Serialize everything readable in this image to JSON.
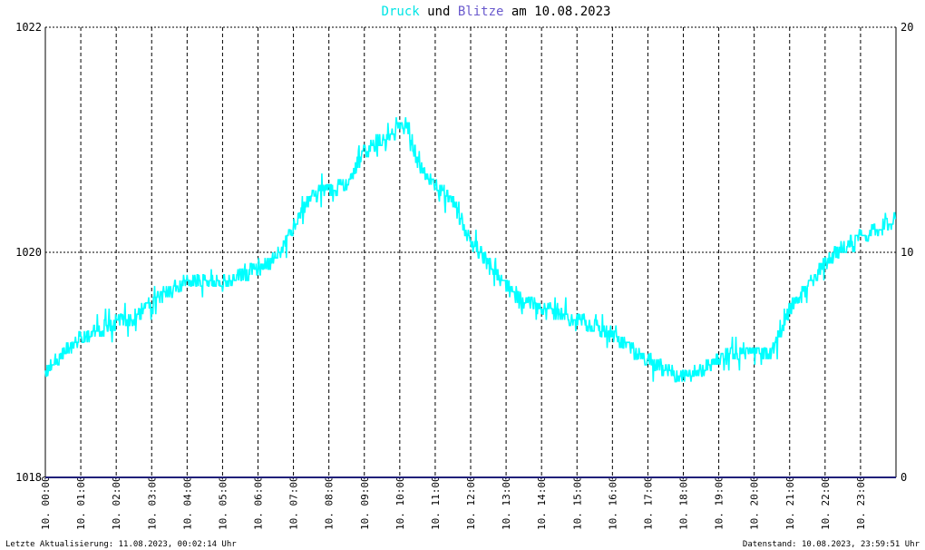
{
  "title": {
    "part1": "Druck",
    "part2": " und ",
    "part3": "Blitze",
    "part4": " am 10.08.2023",
    "color1": "#00e5e5",
    "color3": "#6a5acd",
    "color_text": "#000000"
  },
  "footer": {
    "left": "Letzte Aktualisierung: 11.08.2023, 00:02:14 Uhr",
    "right": "Datenstand: 10.08.2023, 23:59:51 Uhr"
  },
  "chart_data": {
    "type": "line",
    "title": "Druck und Blitze am 10.08.2023",
    "x_ticks": [
      "10. 00:00",
      "10. 01:00",
      "10. 02:00",
      "10. 03:00",
      "10. 04:00",
      "10. 05:00",
      "10. 06:00",
      "10. 07:00",
      "10. 08:00",
      "10. 09:00",
      "10. 10:00",
      "10. 11:00",
      "10. 12:00",
      "10. 13:00",
      "10. 14:00",
      "10. 15:00",
      "10. 16:00",
      "10. 17:00",
      "10. 18:00",
      "10. 19:00",
      "10. 20:00",
      "10. 21:00",
      "10. 22:00",
      "10. 23:00"
    ],
    "y_left": {
      "min": 1018,
      "max": 1022,
      "ticks": [
        "1018",
        "1020",
        "1022"
      ]
    },
    "y_right": {
      "min": 0,
      "max": 20,
      "ticks": [
        "0",
        "10",
        "20"
      ]
    },
    "grid": true,
    "series": [
      {
        "name": "Druck",
        "axis": "left",
        "color": "#00ffff",
        "x_hours": [
          0,
          0.5,
          1,
          1.5,
          2,
          2.5,
          3,
          3.5,
          4,
          4.5,
          5,
          5.5,
          6,
          6.5,
          7,
          7.5,
          8,
          8.5,
          9,
          9.5,
          10,
          10.25,
          10.5,
          11,
          11.5,
          12,
          12.5,
          13,
          13.5,
          14,
          14.5,
          15,
          15.5,
          16,
          16.5,
          17,
          17.5,
          18,
          18.5,
          19,
          19.5,
          20,
          20.5,
          21,
          21.5,
          22,
          22.5,
          23,
          23.5,
          24
        ],
        "values": [
          1018.95,
          1019.1,
          1019.25,
          1019.3,
          1019.38,
          1019.42,
          1019.55,
          1019.65,
          1019.75,
          1019.75,
          1019.72,
          1019.8,
          1019.85,
          1019.95,
          1020.2,
          1020.5,
          1020.55,
          1020.6,
          1020.9,
          1021.0,
          1021.1,
          1021.1,
          1020.8,
          1020.6,
          1020.45,
          1020.1,
          1019.9,
          1019.7,
          1019.55,
          1019.5,
          1019.45,
          1019.4,
          1019.35,
          1019.25,
          1019.15,
          1019.05,
          1018.95,
          1018.9,
          1018.95,
          1019.05,
          1019.1,
          1019.08,
          1019.1,
          1019.5,
          1019.7,
          1019.9,
          1020.05,
          1020.15,
          1020.2,
          1020.3
        ]
      },
      {
        "name": "Blitze",
        "axis": "right",
        "color": "#20207a",
        "x_hours": [
          0,
          24
        ],
        "values": [
          0,
          0
        ]
      }
    ]
  }
}
